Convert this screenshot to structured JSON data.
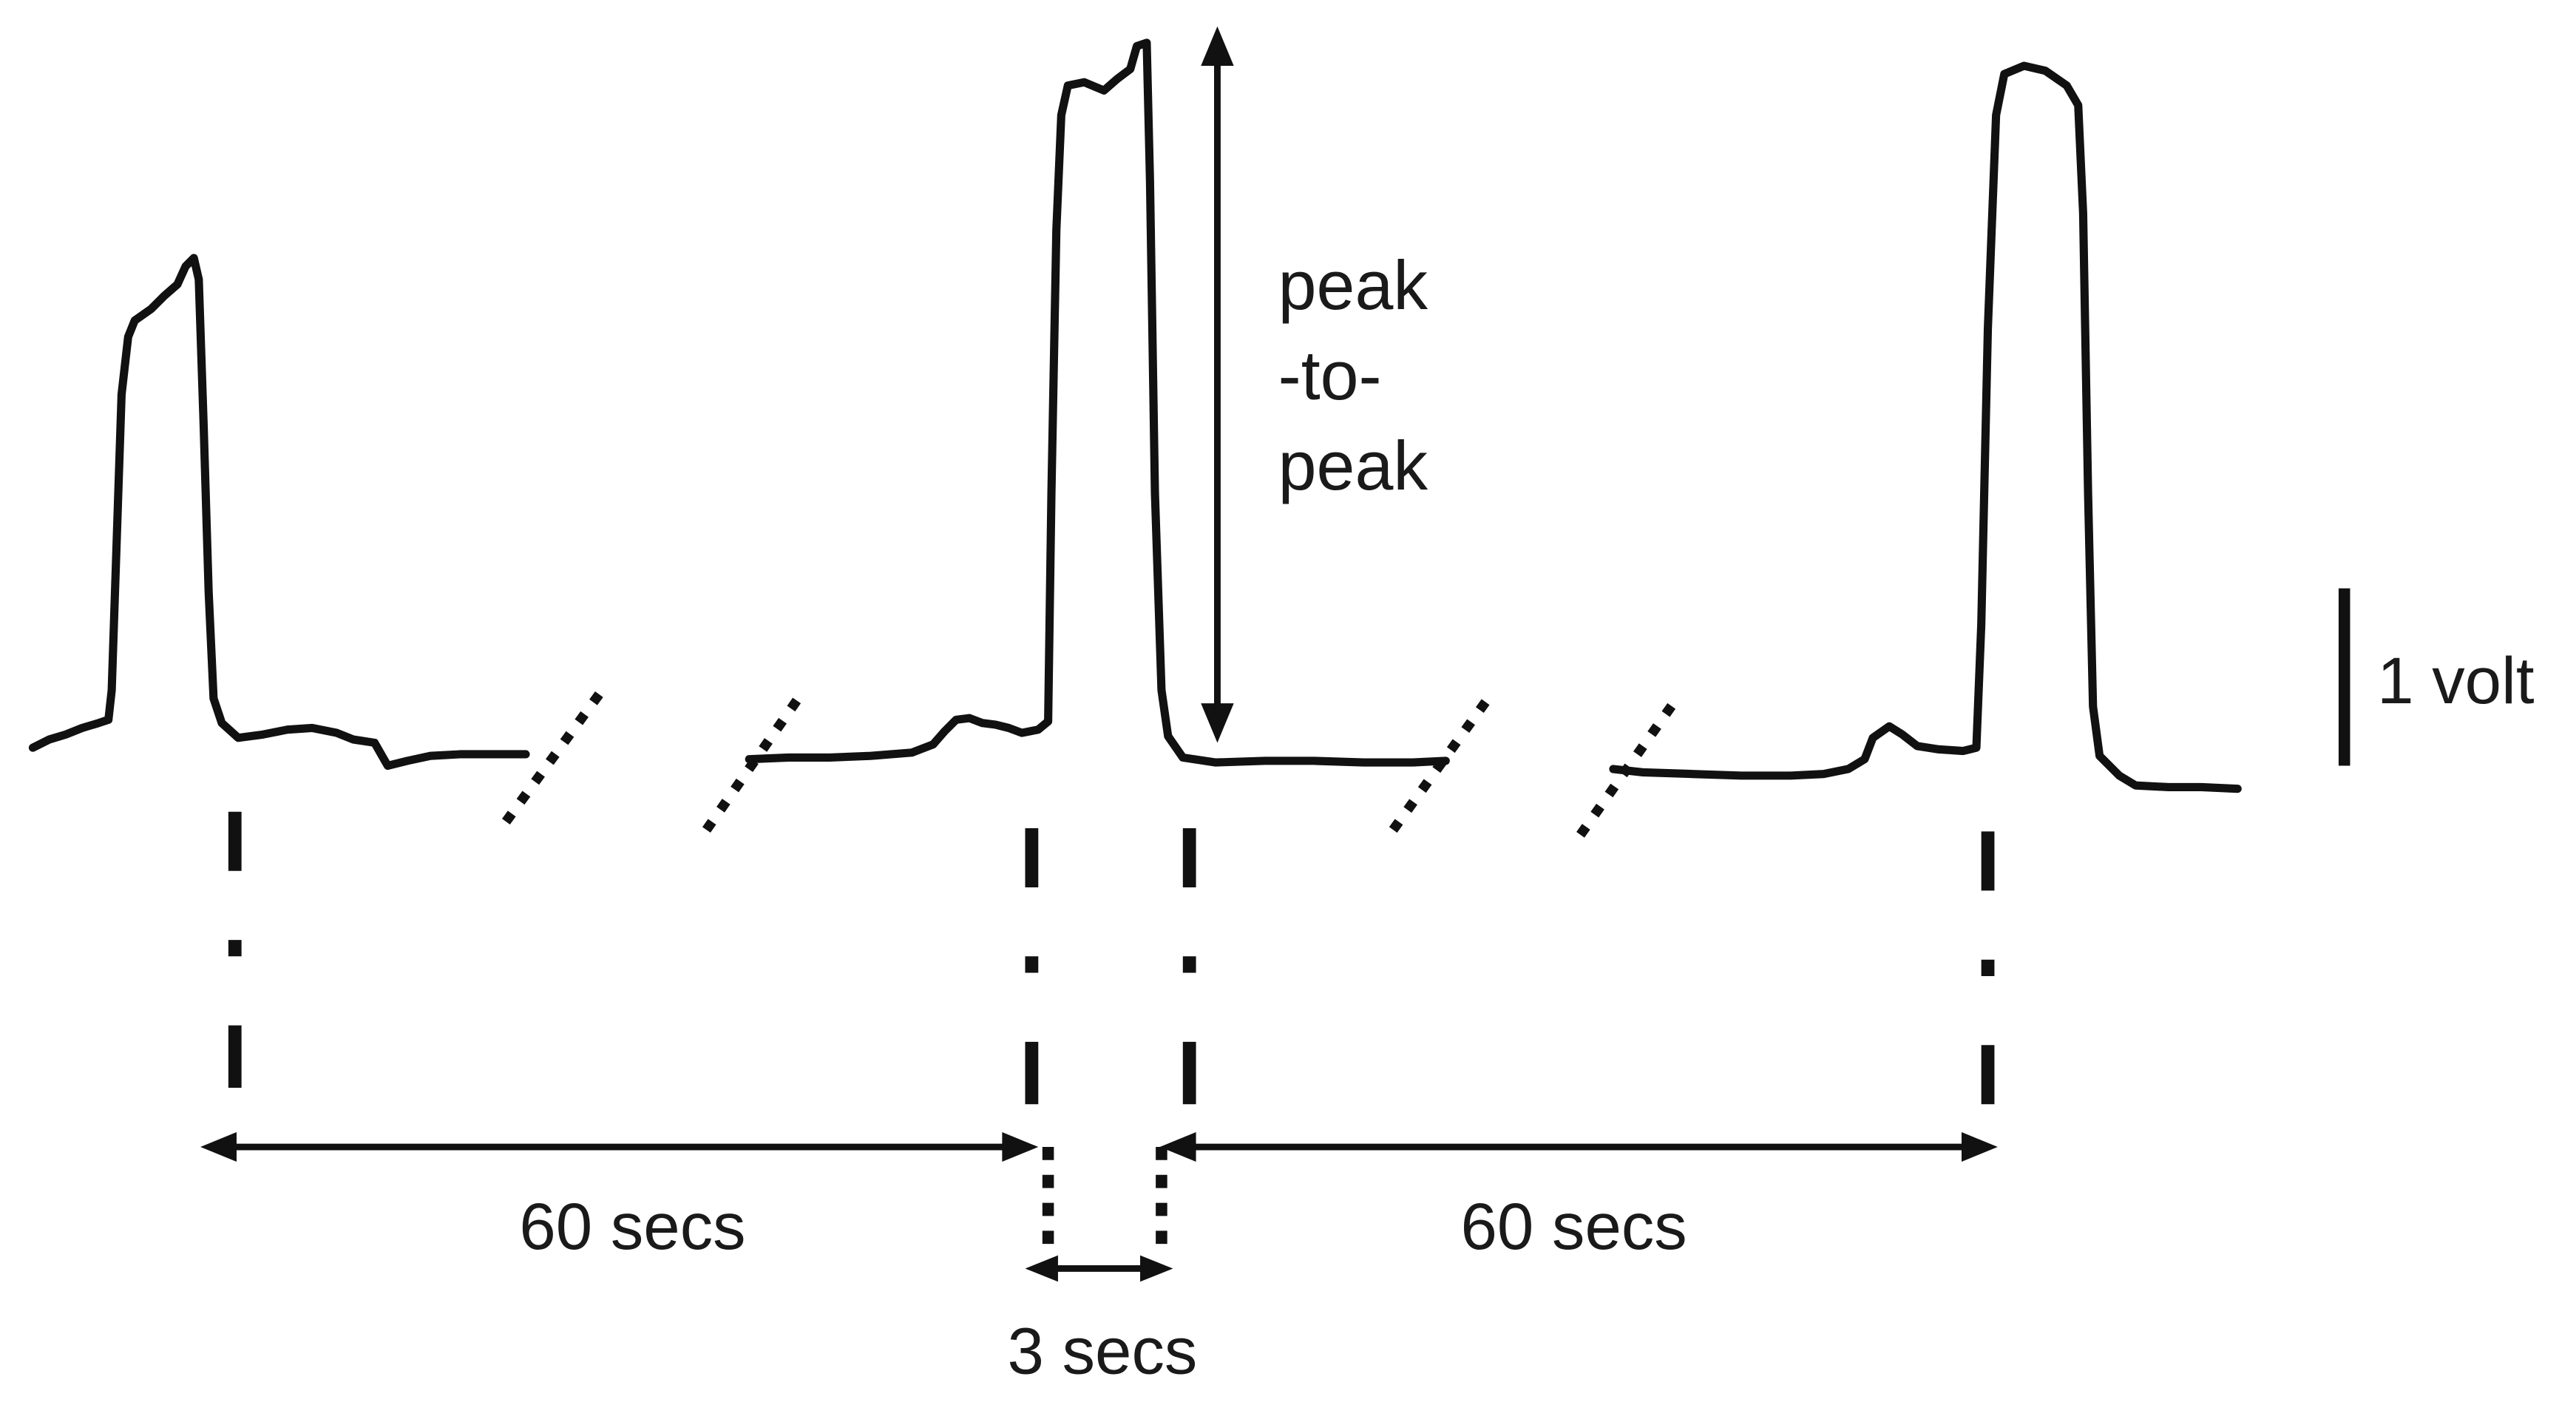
{
  "labels": {
    "peak_line1": "peak",
    "peak_line2": "-to-",
    "peak_line3": "peak",
    "scale": "1 volt",
    "interval_left": "60 secs",
    "interval_right": "60 secs",
    "interval_mid": "3 secs"
  },
  "colors": {
    "stroke": "#111111",
    "text": "#1a1a1a",
    "background": "#ffffff"
  }
}
